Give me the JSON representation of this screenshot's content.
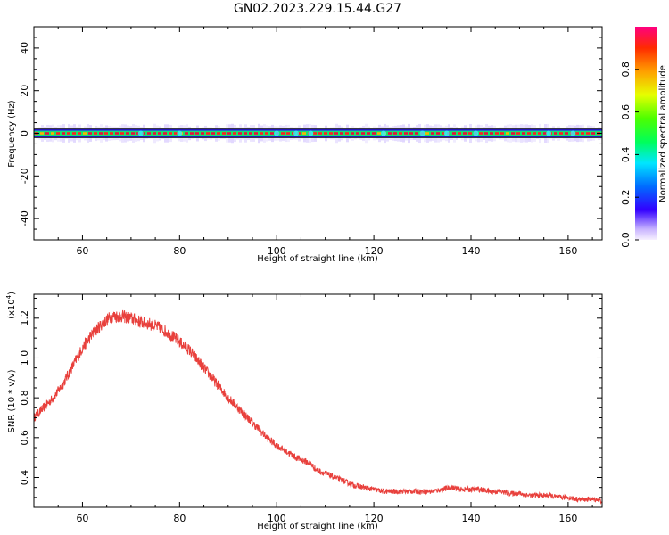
{
  "title": "GN02.2023.229.15.44.G27",
  "chart_data": [
    {
      "type": "heatmap",
      "xlabel": "Height of straight line (km)",
      "ylabel": "Frequency (Hz)",
      "xlim": [
        50,
        167
      ],
      "ylim": [
        -50,
        50
      ],
      "xticks": [
        60,
        80,
        100,
        120,
        140,
        160
      ],
      "yticks": [
        -40,
        -20,
        0,
        20,
        40
      ],
      "band_center_hz": 0,
      "band_halfwidth_hz": 2,
      "colorbar": {
        "label": "Normalized spectral amplitude",
        "range": [
          0,
          1
        ],
        "ticks": [
          "0.0",
          "0.2",
          "0.4",
          "0.6",
          "0.8"
        ],
        "tick_values": [
          0.0,
          0.2,
          0.4,
          0.6,
          0.8
        ]
      }
    },
    {
      "type": "line",
      "xlabel": "Height of straight line (km)",
      "ylabel": "SNR (10 * v/v)",
      "multiplier": "(x10",
      "multiplier_exp": "4",
      "xlim": [
        50,
        167
      ],
      "ylim": [
        0.25,
        1.32
      ],
      "xticks": [
        60,
        80,
        100,
        120,
        140,
        160
      ],
      "yticks": [
        "0.4",
        "0.6",
        "0.8",
        "1.0",
        "1.2"
      ],
      "ytick_values": [
        0.4,
        0.6,
        0.8,
        1.0,
        1.2
      ],
      "line_color": "#e8403c",
      "series": [
        {
          "x": [
            50,
            52,
            54,
            56,
            58,
            60,
            62,
            64,
            66,
            68,
            70,
            72,
            74,
            76,
            78,
            80,
            82,
            84,
            86,
            88,
            90,
            92,
            94,
            96,
            98,
            100,
            102,
            104,
            106,
            107,
            108,
            110,
            112,
            114,
            116,
            118,
            120,
            122,
            124,
            126,
            128,
            130,
            132,
            134,
            136,
            138,
            140,
            142,
            144,
            146,
            148,
            150,
            152,
            154,
            156,
            158,
            160,
            162,
            164,
            166,
            167
          ],
          "values": [
            0.7,
            0.75,
            0.8,
            0.87,
            0.96,
            1.05,
            1.12,
            1.17,
            1.21,
            1.21,
            1.2,
            1.18,
            1.17,
            1.15,
            1.12,
            1.08,
            1.04,
            0.98,
            0.92,
            0.86,
            0.8,
            0.75,
            0.7,
            0.65,
            0.6,
            0.56,
            0.53,
            0.5,
            0.48,
            0.47,
            0.44,
            0.42,
            0.4,
            0.38,
            0.36,
            0.35,
            0.34,
            0.33,
            0.33,
            0.33,
            0.33,
            0.33,
            0.33,
            0.34,
            0.35,
            0.34,
            0.34,
            0.34,
            0.33,
            0.33,
            0.32,
            0.32,
            0.31,
            0.31,
            0.31,
            0.3,
            0.3,
            0.29,
            0.29,
            0.29,
            0.28
          ]
        }
      ]
    }
  ]
}
